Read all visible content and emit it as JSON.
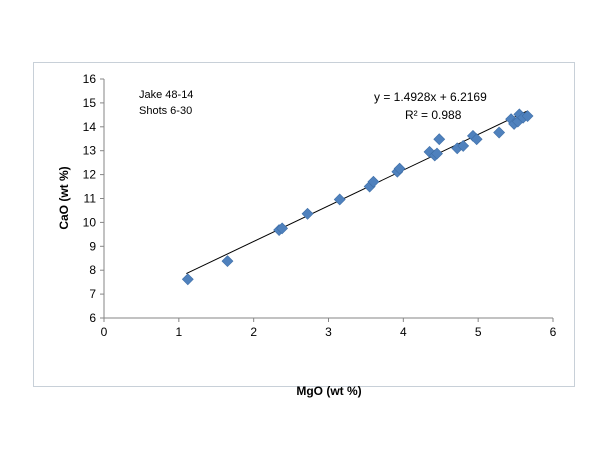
{
  "chart_data": {
    "type": "scatter",
    "xlabel": "MgO (wt %)",
    "ylabel": "CaO (wt %)",
    "xlim": [
      0,
      6
    ],
    "ylim": [
      6,
      16
    ],
    "xticks": [
      "0",
      "1",
      "2",
      "3",
      "4",
      "5",
      "6"
    ],
    "yticks": [
      "6",
      "7",
      "8",
      "9",
      "10",
      "11",
      "12",
      "13",
      "14",
      "15",
      "16"
    ],
    "grid": false,
    "legend": "none",
    "marker_color": "#4f81bd",
    "annotation_lines": [
      "Jake 48-14",
      "Shots 6-30"
    ],
    "trendline": {
      "equation": "y = 1.4928x + 6.2169",
      "r2": "R² = 0.988",
      "slope": 1.4928,
      "intercept": 6.2169,
      "x_range": [
        1.1,
        5.65
      ]
    },
    "points": [
      {
        "x": 1.12,
        "y": 7.62
      },
      {
        "x": 1.65,
        "y": 8.38
      },
      {
        "x": 2.34,
        "y": 9.68
      },
      {
        "x": 2.38,
        "y": 9.75
      },
      {
        "x": 2.72,
        "y": 10.36
      },
      {
        "x": 3.15,
        "y": 10.96
      },
      {
        "x": 3.55,
        "y": 11.5
      },
      {
        "x": 3.6,
        "y": 11.7
      },
      {
        "x": 3.92,
        "y": 12.12
      },
      {
        "x": 3.95,
        "y": 12.25
      },
      {
        "x": 4.35,
        "y": 12.95
      },
      {
        "x": 4.42,
        "y": 12.8
      },
      {
        "x": 4.45,
        "y": 12.88
      },
      {
        "x": 4.48,
        "y": 13.48
      },
      {
        "x": 4.72,
        "y": 13.1
      },
      {
        "x": 4.8,
        "y": 13.2
      },
      {
        "x": 4.93,
        "y": 13.62
      },
      {
        "x": 4.98,
        "y": 13.48
      },
      {
        "x": 5.28,
        "y": 13.76
      },
      {
        "x": 5.44,
        "y": 14.32
      },
      {
        "x": 5.48,
        "y": 14.12
      },
      {
        "x": 5.53,
        "y": 14.22
      },
      {
        "x": 5.55,
        "y": 14.52
      },
      {
        "x": 5.6,
        "y": 14.38
      },
      {
        "x": 5.66,
        "y": 14.45
      }
    ]
  }
}
